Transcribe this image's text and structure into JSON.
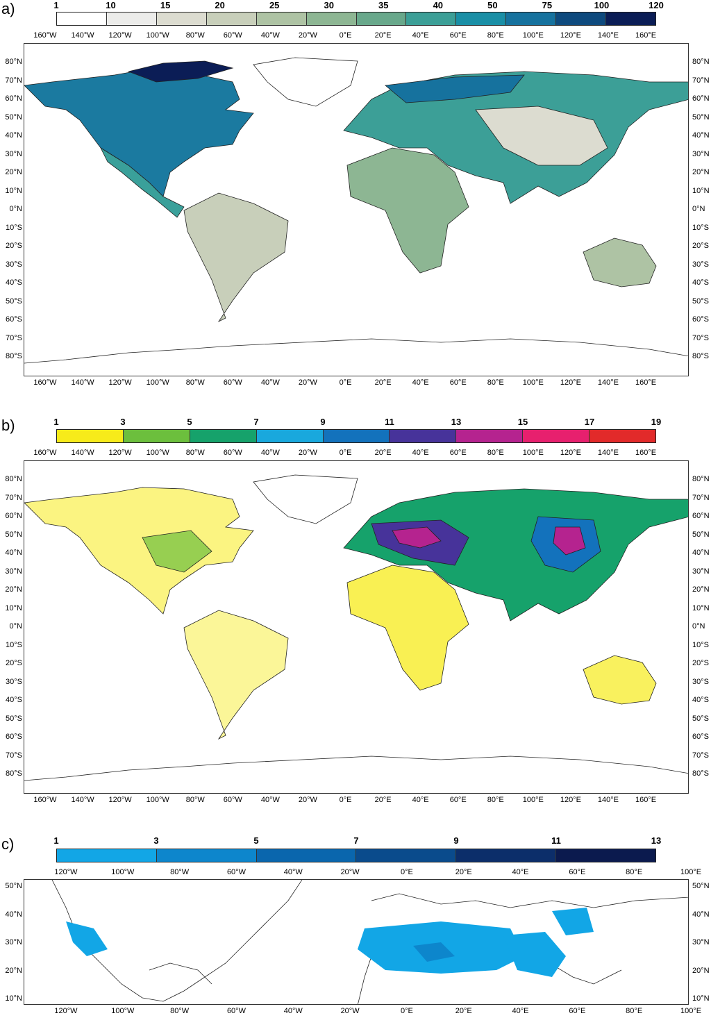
{
  "panels": [
    {
      "label": "a)",
      "colorbar": {
        "values": [
          "1",
          "10",
          "15",
          "20",
          "25",
          "30",
          "35",
          "40",
          "50",
          "75",
          "100",
          "120"
        ],
        "colors": [
          "#ffffff",
          "#ececea",
          "#dcdcd0",
          "#c8cfba",
          "#aec3a4",
          "#8db693",
          "#68a88b",
          "#3c9f97",
          "#1a8fa6",
          "#16729e",
          "#0e4a7e",
          "#0b1d56"
        ]
      },
      "x_ticks": [
        "160°W",
        "140°W",
        "120°W",
        "100°W",
        "80°W",
        "60°W",
        "40°W",
        "20°W",
        "0°E",
        "20°E",
        "40°E",
        "60°E",
        "80°E",
        "100°E",
        "120°E",
        "140°E",
        "160°E"
      ],
      "y_ticks": [
        "80°N",
        "70°N",
        "60°N",
        "50°N",
        "40°N",
        "30°N",
        "20°N",
        "10°N",
        "0°N",
        "10°S",
        "20°S",
        "30°S",
        "40°S",
        "50°S",
        "60°S",
        "70°S",
        "80°S"
      ]
    },
    {
      "label": "b)",
      "colorbar": {
        "values": [
          "1",
          "3",
          "5",
          "7",
          "9",
          "11",
          "13",
          "15",
          "17",
          "19"
        ],
        "colors": [
          "#f7eb1a",
          "#6cbf3d",
          "#16a26b",
          "#19a8dd",
          "#1372bc",
          "#47339a",
          "#b5238f",
          "#e7206e",
          "#e22a2a"
        ]
      },
      "x_ticks": [
        "160°W",
        "140°W",
        "120°W",
        "100°W",
        "80°W",
        "60°W",
        "40°W",
        "20°W",
        "0°E",
        "20°E",
        "40°E",
        "60°E",
        "80°E",
        "100°E",
        "120°E",
        "140°E",
        "160°E"
      ],
      "y_ticks": [
        "80°N",
        "70°N",
        "60°N",
        "50°N",
        "40°N",
        "30°N",
        "20°N",
        "10°N",
        "0°N",
        "10°S",
        "20°S",
        "30°S",
        "40°S",
        "50°S",
        "60°S",
        "70°S",
        "80°S"
      ]
    },
    {
      "label": "c)",
      "colorbar": {
        "values": [
          "1",
          "3",
          "5",
          "7",
          "9",
          "11",
          "13"
        ],
        "colors": [
          "#12a6e6",
          "#0d86cc",
          "#0a66ad",
          "#0a4b8c",
          "#0c2e6a",
          "#0b1a4e"
        ]
      },
      "x_ticks": [
        "120°W",
        "100°W",
        "80°W",
        "60°W",
        "40°W",
        "20°W",
        "0°E",
        "20°E",
        "40°E",
        "60°E",
        "80°E",
        "100°E"
      ],
      "y_ticks": [
        "50°N",
        "40°N",
        "30°N",
        "20°N",
        "10°N"
      ]
    }
  ]
}
